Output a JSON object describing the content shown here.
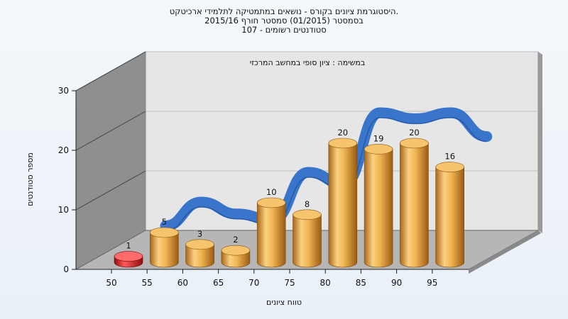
{
  "chart_data": {
    "type": "bar",
    "title_lines": [
      "היסטוגרמת ציונים בקורס - נושאים במתמטיקה לתלמידי ארכיטקט.",
      "בסמסטר  (01/2015)  סמסטר חורף  2015/16",
      "סטודנטים רשומים - 107"
    ],
    "subtitle": "במשימה : ציון סופי במחשב המרכזי",
    "xlabel": "טווח ציונים",
    "ylabel": "מספר סטודנטים",
    "x_ticks": [
      "50",
      "55",
      "60",
      "65",
      "70",
      "75",
      "80",
      "85",
      "90",
      "95"
    ],
    "y_ticks": [
      0,
      10,
      20,
      30
    ],
    "ylim": [
      0,
      30
    ],
    "series": [
      {
        "values": [
          1,
          5,
          3,
          2,
          10,
          8,
          20,
          19,
          20,
          16
        ],
        "color": "#e8a43c"
      }
    ],
    "highlight_color": "#d42020",
    "trend_color": "#2f6fc8",
    "grid": true,
    "three_d": true
  }
}
